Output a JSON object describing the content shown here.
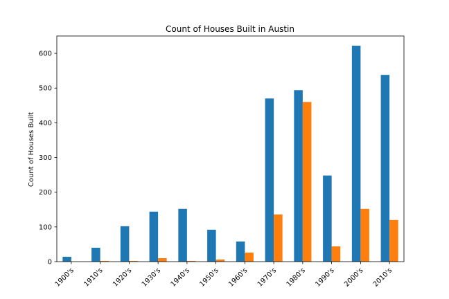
{
  "chart_data": {
    "type": "bar",
    "title": "Count of Houses Built in Austin",
    "xlabel": "",
    "ylabel": "Count of Houses Built",
    "categories": [
      "1900's",
      "1910's",
      "1920's",
      "1930's",
      "1940's",
      "1950's",
      "1960's",
      "1970's",
      "1980's",
      "1990's",
      "2000's",
      "2010's"
    ],
    "series": [
      {
        "color": "#1f77b4",
        "values": [
          14,
          40,
          102,
          144,
          152,
          92,
          58,
          470,
          494,
          248,
          622,
          538
        ]
      },
      {
        "color": "#ff7f0e",
        "values": [
          0,
          2,
          2,
          10,
          2,
          6,
          26,
          136,
          460,
          44,
          152,
          120
        ]
      }
    ],
    "ylim": [
      0,
      650
    ],
    "yticks": [
      0,
      100,
      200,
      300,
      400,
      500,
      600
    ],
    "grid": false,
    "legend": "none"
  }
}
